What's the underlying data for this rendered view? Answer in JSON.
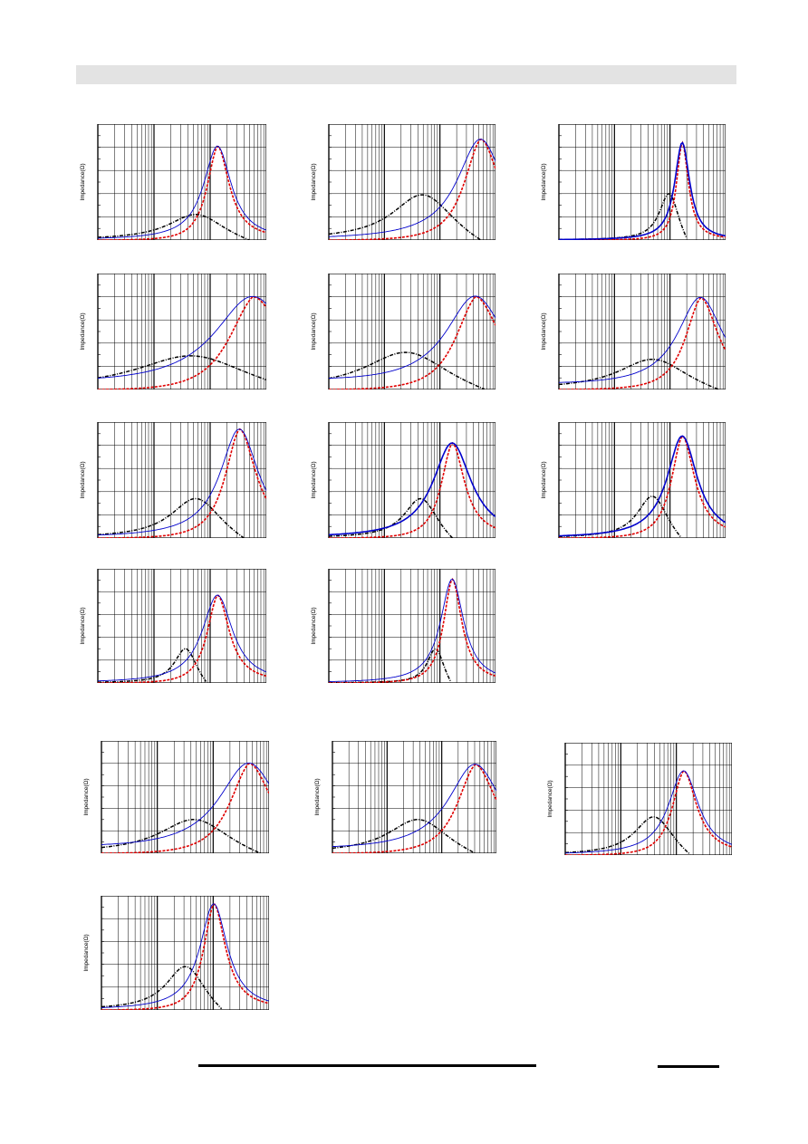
{
  "page": {},
  "colors": {
    "total": "#0000cc",
    "real": "#e00000",
    "imag": "#000000",
    "grid": "#000000",
    "header_bar": "#e3e3e3"
  },
  "chart_data": [
    {
      "type": "line",
      "id": "c1",
      "ylabel": "Impedance(Ω)",
      "x_scale": "log",
      "peak_x": 0.71,
      "peak_y": 0.81,
      "total_w": 0.1,
      "real_w": 0.085,
      "imag_peak_x": 0.58,
      "imag_peak_y": 0.22,
      "imag_w": 0.2,
      "base": 0.0,
      "bold": false
    },
    {
      "type": "line",
      "id": "c2",
      "ylabel": "Impedance(Ω)",
      "x_scale": "log",
      "peak_x": 0.91,
      "peak_y": 0.87,
      "total_w": 0.17,
      "real_w": 0.14,
      "imag_peak_x": 0.56,
      "imag_peak_y": 0.39,
      "imag_w": 0.22,
      "base": 0.0,
      "bold": false
    },
    {
      "type": "line",
      "id": "c3",
      "ylabel": "Impedance(Ω)",
      "x_scale": "log",
      "peak_x": 0.74,
      "peak_y": 0.84,
      "total_w": 0.055,
      "real_w": 0.045,
      "imag_peak_x": 0.66,
      "imag_peak_y": 0.4,
      "imag_w": 0.07,
      "base": 0.0,
      "bold": true
    },
    {
      "type": "line",
      "id": "c4",
      "ylabel": "Impedance(Ω)",
      "x_scale": "log",
      "peak_x": 0.92,
      "peak_y": 0.8,
      "total_w": 0.28,
      "real_w": 0.22,
      "imag_peak_x": 0.55,
      "imag_peak_y": 0.29,
      "imag_w": 0.4,
      "base": 0.03,
      "bold": false
    },
    {
      "type": "line",
      "id": "c5",
      "ylabel": "Impedance(Ω)",
      "x_scale": "log",
      "peak_x": 0.88,
      "peak_y": 0.8,
      "total_w": 0.22,
      "real_w": 0.18,
      "imag_peak_x": 0.46,
      "imag_peak_y": 0.32,
      "imag_w": 0.3,
      "base": 0.05,
      "bold": false
    },
    {
      "type": "line",
      "id": "c6",
      "ylabel": "Impedance(Ω)",
      "x_scale": "log",
      "peak_x": 0.85,
      "peak_y": 0.79,
      "total_w": 0.17,
      "real_w": 0.13,
      "imag_peak_x": 0.56,
      "imag_peak_y": 0.26,
      "imag_w": 0.25,
      "base": 0.03,
      "bold": false
    },
    {
      "type": "line",
      "id": "c7",
      "ylabel": "Impedance(Ω)",
      "x_scale": "log",
      "peak_x": 0.84,
      "peak_y": 0.94,
      "total_w": 0.14,
      "real_w": 0.12,
      "imag_peak_x": 0.58,
      "imag_peak_y": 0.34,
      "imag_w": 0.18,
      "base": 0.0,
      "bold": false
    },
    {
      "type": "line",
      "id": "c8",
      "ylabel": "Impedance(Ω)",
      "x_scale": "log",
      "peak_x": 0.74,
      "peak_y": 0.82,
      "total_w": 0.14,
      "real_w": 0.09,
      "imag_peak_x": 0.55,
      "imag_peak_y": 0.34,
      "imag_w": 0.12,
      "base": 0.0,
      "bold": true
    },
    {
      "type": "line",
      "id": "c9",
      "ylabel": "Impedance(Ω)",
      "x_scale": "log",
      "peak_x": 0.74,
      "peak_y": 0.88,
      "total_w": 0.11,
      "real_w": 0.09,
      "imag_peak_x": 0.56,
      "imag_peak_y": 0.36,
      "imag_w": 0.11,
      "base": 0.0,
      "bold": true
    },
    {
      "type": "line",
      "id": "c10",
      "ylabel": "Impedance(Ω)",
      "x_scale": "log",
      "peak_x": 0.71,
      "peak_y": 0.77,
      "total_w": 0.11,
      "real_w": 0.085,
      "imag_peak_x": 0.52,
      "imag_peak_y": 0.3,
      "imag_w": 0.08,
      "base": 0.0,
      "bold": false
    },
    {
      "type": "line",
      "id": "c11",
      "ylabel": "Impedance(Ω)",
      "x_scale": "log",
      "peak_x": 0.74,
      "peak_y": 0.91,
      "total_w": 0.085,
      "real_w": 0.07,
      "imag_peak_x": 0.64,
      "imag_peak_y": 0.3,
      "imag_w": 0.06,
      "base": 0.0,
      "bold": false
    },
    {
      "type": "line",
      "id": "c12",
      "ylabel": "Impedance(Ω)",
      "x_scale": "log",
      "peak_x": 0.88,
      "peak_y": 0.8,
      "total_w": 0.22,
      "real_w": 0.17,
      "imag_peak_x": 0.55,
      "imag_peak_y": 0.3,
      "imag_w": 0.25,
      "base": 0.03,
      "bold": false
    },
    {
      "type": "line",
      "id": "c13",
      "ylabel": "Impedance(Ω)",
      "x_scale": "log",
      "peak_x": 0.87,
      "peak_y": 0.79,
      "total_w": 0.2,
      "real_w": 0.16,
      "imag_peak_x": 0.52,
      "imag_peak_y": 0.3,
      "imag_w": 0.22,
      "base": 0.02,
      "bold": false
    },
    {
      "type": "line",
      "id": "c14",
      "ylabel": "Impedance(Ω)",
      "x_scale": "log",
      "peak_x": 0.71,
      "peak_y": 0.75,
      "total_w": 0.11,
      "real_w": 0.095,
      "imag_peak_x": 0.53,
      "imag_peak_y": 0.34,
      "imag_w": 0.14,
      "base": 0.0,
      "bold": false
    },
    {
      "type": "line",
      "id": "c15",
      "ylabel": "Impedance(Ω)",
      "x_scale": "log",
      "peak_x": 0.67,
      "peak_y": 0.93,
      "total_w": 0.1,
      "real_w": 0.085,
      "imag_peak_x": 0.5,
      "imag_peak_y": 0.38,
      "imag_w": 0.14,
      "base": 0.0,
      "bold": false
    }
  ]
}
